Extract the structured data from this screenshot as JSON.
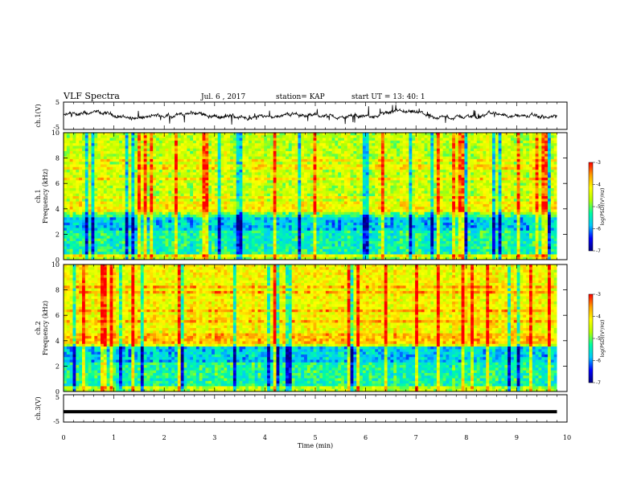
{
  "header": {
    "title": "VLF Spectra",
    "date": "Jul. 6 , 2017",
    "station": "station= KAP",
    "start": "start UT = 13: 40: 1"
  },
  "colors": {
    "colormap": [
      "#000080",
      "#0000ff",
      "#00c8ff",
      "#00ffa0",
      "#b4ff00",
      "#ffff00",
      "#ffa000",
      "#ff0000",
      "#ffffff"
    ],
    "trace": "#000000"
  },
  "chart_data": [
    {
      "type": "line",
      "name": "waveform-ch1",
      "ylabel": "ch.1(V)",
      "ylim": [
        -5,
        5
      ],
      "yticks": [
        "5",
        "-5"
      ],
      "x_range_min": [
        0,
        9.8
      ],
      "description_values": "noisy waveform fluctuating about 0 V"
    },
    {
      "type": "heatmap",
      "name": "spectrogram-ch1",
      "ylabel": "ch.1 Frequency (kHz)",
      "ylim": [
        0,
        10
      ],
      "yticks": [
        "0",
        "2",
        "4",
        "6",
        "8",
        "10"
      ],
      "colorbar": {
        "label": "log(PSD)(V²/Hz)",
        "range": [
          -7,
          -3
        ],
        "ticks": [
          "-3",
          "-4",
          "-5",
          "-6",
          "-7"
        ]
      }
    },
    {
      "type": "heatmap",
      "name": "spectrogram-ch2",
      "ylabel": "ch.2 Frequency (kHz)",
      "ylim": [
        0,
        10
      ],
      "yticks": [
        "0",
        "2",
        "4",
        "6",
        "8",
        "10"
      ],
      "colorbar": {
        "label": "log(PSD)(V²/Hz)",
        "range": [
          -7,
          -3
        ],
        "ticks": [
          "-3",
          "-4",
          "-5",
          "-6",
          "-7"
        ]
      }
    },
    {
      "type": "line",
      "name": "waveform-ch3",
      "ylabel": "ch.3(V)",
      "ylim": [
        -5,
        5
      ],
      "yticks": [
        "5",
        "-5"
      ],
      "values_constant": -1.2
    }
  ],
  "xaxis": {
    "label": "Time (min)",
    "ticks": [
      "0",
      "1",
      "2",
      "3",
      "4",
      "5",
      "6",
      "7",
      "8",
      "9",
      "10"
    ]
  }
}
